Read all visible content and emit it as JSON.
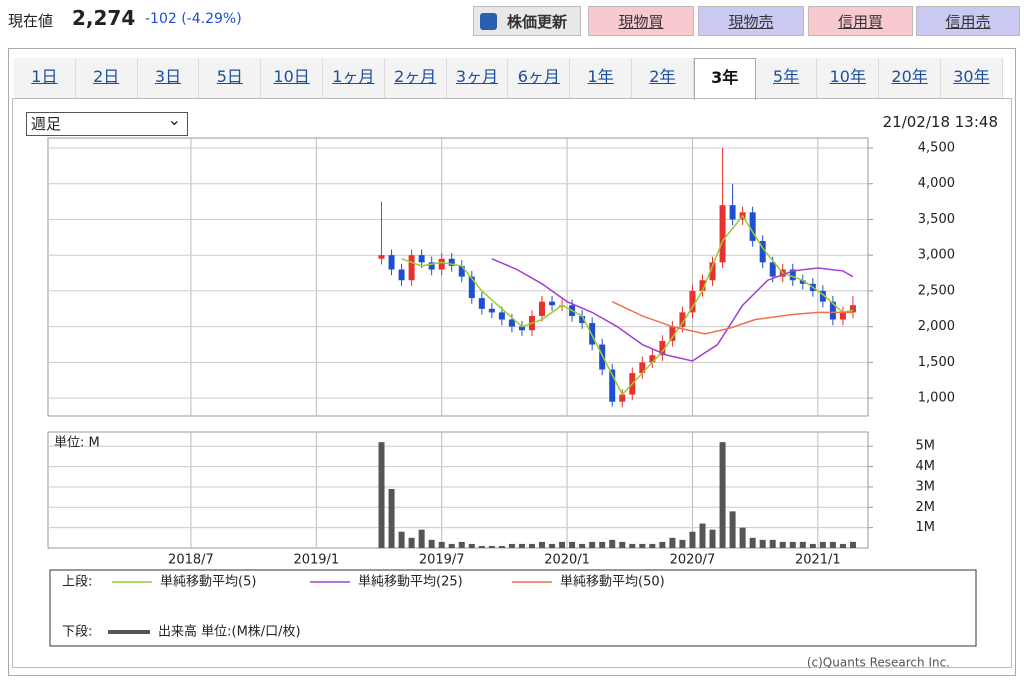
{
  "header": {
    "label": "現在値",
    "price": "2,274",
    "change": "-102 (-4.29%)"
  },
  "buttons": [
    "株価更新",
    "現物買",
    "現物売",
    "信用買",
    "信用売"
  ],
  "tabs": [
    "1日",
    "2日",
    "3日",
    "5日",
    "10日",
    "1ヶ月",
    "2ヶ月",
    "3ヶ月",
    "6ヶ月",
    "1年",
    "2年",
    "3年",
    "5年",
    "10年",
    "20年",
    "30年"
  ],
  "select": "週足",
  "timestamp": "21/02/18 13:48",
  "copyright": "(c)Quants Research Inc.",
  "chart_data": [
    {
      "type": "candlestick",
      "legend_label": "上段:",
      "up_color": "#e8322f",
      "down_color": "#1f4fd1",
      "grid": true,
      "xlim": [
        2017.93,
        2021.2
      ],
      "ylim": [
        750,
        4640
      ],
      "yticks": [
        {
          "value": 1000,
          "label": "1,000"
        },
        {
          "value": 1500,
          "label": "1,500"
        },
        {
          "value": 2000,
          "label": "2,000"
        },
        {
          "value": 2500,
          "label": "2,500"
        },
        {
          "value": 3000,
          "label": "3,000"
        },
        {
          "value": 3500,
          "label": "3,500"
        },
        {
          "value": 4000,
          "label": "4,000"
        },
        {
          "value": 4500,
          "label": "4,500"
        }
      ],
      "x": [
        2019.26,
        2019.3,
        2019.34,
        2019.38,
        2019.42,
        2019.46,
        2019.5,
        2019.54,
        2019.58,
        2019.62,
        2019.66,
        2019.7,
        2019.74,
        2019.78,
        2019.82,
        2019.86,
        2019.9,
        2019.94,
        2019.98,
        2020.02,
        2020.06,
        2020.1,
        2020.14,
        2020.18,
        2020.22,
        2020.26,
        2020.3,
        2020.34,
        2020.38,
        2020.42,
        2020.46,
        2020.5,
        2020.54,
        2020.58,
        2020.62,
        2020.66,
        2020.7,
        2020.74,
        2020.78,
        2020.82,
        2020.86,
        2020.9,
        2020.94,
        2020.98,
        2021.02,
        2021.06,
        2021.1,
        2021.14
      ],
      "open": [
        2950,
        3000,
        2800,
        2650,
        3000,
        2900,
        2800,
        2950,
        2850,
        2700,
        2400,
        2250,
        2200,
        2100,
        2000,
        1950,
        2150,
        2350,
        2300,
        2300,
        2150,
        2050,
        1750,
        1400,
        950,
        1050,
        1350,
        1500,
        1600,
        1800,
        2000,
        2200,
        2500,
        2650,
        2900,
        3700,
        3500,
        3600,
        3200,
        2900,
        2700,
        2800,
        2650,
        2600,
        2500,
        2350,
        2100,
        2200
      ],
      "high": [
        3750,
        3080,
        2880,
        3080,
        3080,
        2980,
        3030,
        3030,
        2930,
        2780,
        2480,
        2330,
        2280,
        2180,
        2080,
        2230,
        2430,
        2430,
        2380,
        2380,
        2230,
        2130,
        1830,
        1480,
        1130,
        1430,
        1580,
        1680,
        1880,
        2080,
        2280,
        2580,
        2730,
        2980,
        4500,
        4000,
        3680,
        3680,
        3280,
        2980,
        2880,
        2880,
        2730,
        2680,
        2580,
        2430,
        2280,
        2430
      ],
      "low": [
        2870,
        2720,
        2570,
        2570,
        2820,
        2720,
        2720,
        2770,
        2620,
        2320,
        2170,
        2120,
        2020,
        1920,
        1870,
        1870,
        2070,
        2220,
        2220,
        2070,
        1970,
        1670,
        1320,
        880,
        870,
        970,
        1270,
        1420,
        1520,
        1720,
        1920,
        2120,
        2420,
        2570,
        2820,
        3420,
        3420,
        3120,
        2820,
        2620,
        2620,
        2570,
        2520,
        2420,
        2270,
        2020,
        2020,
        2120
      ],
      "close": [
        3000,
        2800,
        2650,
        3000,
        2900,
        2800,
        2950,
        2850,
        2700,
        2400,
        2250,
        2200,
        2100,
        2000,
        1950,
        2150,
        2350,
        2300,
        2300,
        2150,
        2050,
        1750,
        1400,
        950,
        1050,
        1350,
        1500,
        1600,
        1800,
        2000,
        2200,
        2500,
        2650,
        2900,
        3700,
        3500,
        3600,
        3200,
        2900,
        2700,
        2800,
        2650,
        2600,
        2500,
        2350,
        2100,
        2200,
        2300
      ],
      "series": [
        {
          "name": "単純移動平均(5)",
          "color": "#9acd32",
          "x": [
            2019.34,
            2019.42,
            2019.5,
            2019.58,
            2019.66,
            2019.74,
            2019.82,
            2019.9,
            2019.98,
            2020.06,
            2020.14,
            2020.22,
            2020.3,
            2020.38,
            2020.46,
            2020.54,
            2020.62,
            2020.7,
            2020.78,
            2020.86,
            2020.94,
            2021.02,
            2021.1,
            2021.14
          ],
          "values": [
            2950,
            2850,
            2900,
            2850,
            2500,
            2250,
            2000,
            2100,
            2300,
            2150,
            1600,
            1050,
            1350,
            1650,
            2050,
            2500,
            3200,
            3550,
            3100,
            2750,
            2650,
            2450,
            2200,
            2230
          ]
        },
        {
          "name": "単純移動平均(25)",
          "color": "#a040d0",
          "x": [
            2019.7,
            2019.8,
            2019.9,
            2020.0,
            2020.1,
            2020.2,
            2020.3,
            2020.4,
            2020.5,
            2020.6,
            2020.7,
            2020.8,
            2020.9,
            2021.0,
            2021.1,
            2021.14
          ],
          "values": [
            2950,
            2800,
            2600,
            2350,
            2200,
            2000,
            1750,
            1600,
            1520,
            1750,
            2300,
            2650,
            2780,
            2820,
            2780,
            2700
          ]
        },
        {
          "name": "単純移動平均(50)",
          "color": "#f07050",
          "x": [
            2020.18,
            2020.3,
            2020.42,
            2020.55,
            2020.65,
            2020.75,
            2020.9,
            2021.0,
            2021.14
          ],
          "values": [
            2350,
            2150,
            2000,
            1900,
            1980,
            2100,
            2170,
            2200,
            2200
          ]
        }
      ]
    },
    {
      "type": "bar",
      "legend_label": "下段:",
      "unit_label": "単位: M",
      "name": "出来高 単位:(M株/口/枚)",
      "color": "#555555",
      "grid": true,
      "xlim": [
        2017.93,
        2021.2
      ],
      "ylim": [
        0,
        5.7
      ],
      "xticks": [
        {
          "value": 2018.5,
          "label": "2018/7"
        },
        {
          "value": 2019.0,
          "label": "2019/1"
        },
        {
          "value": 2019.5,
          "label": "2019/7"
        },
        {
          "value": 2020.0,
          "label": "2020/1"
        },
        {
          "value": 2020.5,
          "label": "2020/7"
        },
        {
          "value": 2021.0,
          "label": "2021/1"
        }
      ],
      "yticks": [
        {
          "value": 1,
          "label": "1M"
        },
        {
          "value": 2,
          "label": "2M"
        },
        {
          "value": 3,
          "label": "3M"
        },
        {
          "value": 4,
          "label": "4M"
        },
        {
          "value": 5,
          "label": "5M"
        }
      ],
      "x": [
        2019.26,
        2019.3,
        2019.34,
        2019.38,
        2019.42,
        2019.46,
        2019.5,
        2019.54,
        2019.58,
        2019.62,
        2019.66,
        2019.7,
        2019.74,
        2019.78,
        2019.82,
        2019.86,
        2019.9,
        2019.94,
        2019.98,
        2020.02,
        2020.06,
        2020.1,
        2020.14,
        2020.18,
        2020.22,
        2020.26,
        2020.3,
        2020.34,
        2020.38,
        2020.42,
        2020.46,
        2020.5,
        2020.54,
        2020.58,
        2020.62,
        2020.66,
        2020.7,
        2020.74,
        2020.78,
        2020.82,
        2020.86,
        2020.9,
        2020.94,
        2020.98,
        2021.02,
        2021.06,
        2021.1,
        2021.14
      ],
      "values": [
        5.2,
        2.9,
        0.8,
        0.5,
        0.9,
        0.4,
        0.3,
        0.2,
        0.3,
        0.2,
        0.1,
        0.1,
        0.1,
        0.2,
        0.2,
        0.2,
        0.3,
        0.2,
        0.3,
        0.3,
        0.2,
        0.3,
        0.3,
        0.4,
        0.3,
        0.2,
        0.2,
        0.2,
        0.3,
        0.5,
        0.4,
        0.8,
        1.2,
        0.9,
        5.2,
        1.8,
        1.0,
        0.5,
        0.4,
        0.4,
        0.3,
        0.3,
        0.3,
        0.2,
        0.3,
        0.3,
        0.2,
        0.3
      ]
    }
  ]
}
